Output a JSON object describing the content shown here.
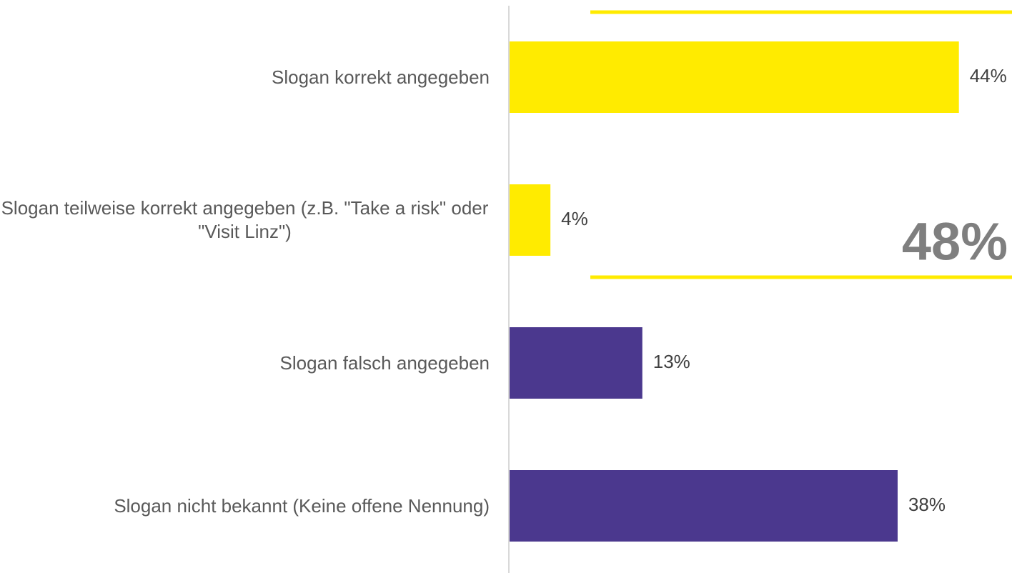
{
  "chart_data": {
    "type": "bar",
    "orientation": "horizontal",
    "categories": [
      "Slogan korrekt angegeben",
      "Slogan teilweise korrekt angegeben (z.B. \"Take a risk\" oder \"Visit Linz\")",
      "Slogan falsch angegeben",
      "Slogan nicht bekannt (Keine offene Nennung)"
    ],
    "values": [
      44,
      4,
      13,
      38
    ],
    "value_labels": [
      "44%",
      "4%",
      "13%",
      "38%"
    ],
    "colors": [
      "#FFEB00",
      "#FFEB00",
      "#4B388E",
      "#4B388E"
    ],
    "xlim": [
      0,
      49.2
    ],
    "annotation": "48%",
    "annotation_color": "#7F7F7F",
    "bracket_color": "#FFEB00"
  }
}
